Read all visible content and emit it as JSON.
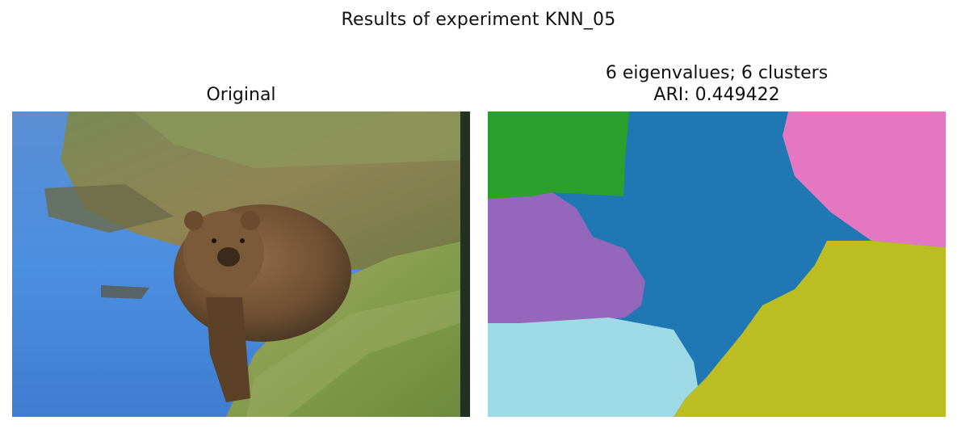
{
  "figure": {
    "suptitle": "Results of experiment KNN_05"
  },
  "panels": [
    {
      "title": "Original",
      "image": "photograph of a brown bear on a grassy riverbank next to blue water"
    },
    {
      "title_line1": "6 eigenvalues; 6 clusters",
      "title_line2": "ARI: 0.449422",
      "image": "segmentation map"
    }
  ],
  "colors": {
    "cluster_green": "#2ca02c",
    "cluster_blue": "#1f77b4",
    "cluster_pink": "#e377c2",
    "cluster_purple": "#9467bd",
    "cluster_cyan": "#9edae5",
    "cluster_olive": "#bcbd22"
  }
}
